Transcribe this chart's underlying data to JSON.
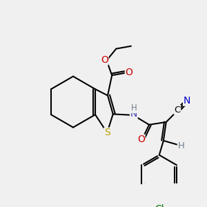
{
  "bg_color": "#f0f0f0",
  "bond_color": "#000000",
  "bond_lw": 1.5,
  "atom_colors": {
    "S": "#b8a000",
    "N_amide": "#4040b0",
    "N_cyano": "#0000cc",
    "O": "#cc0000",
    "Cl": "#007000",
    "H": "#708090",
    "C": "#000000"
  },
  "font_size": 10,
  "font_size_small": 8.5
}
